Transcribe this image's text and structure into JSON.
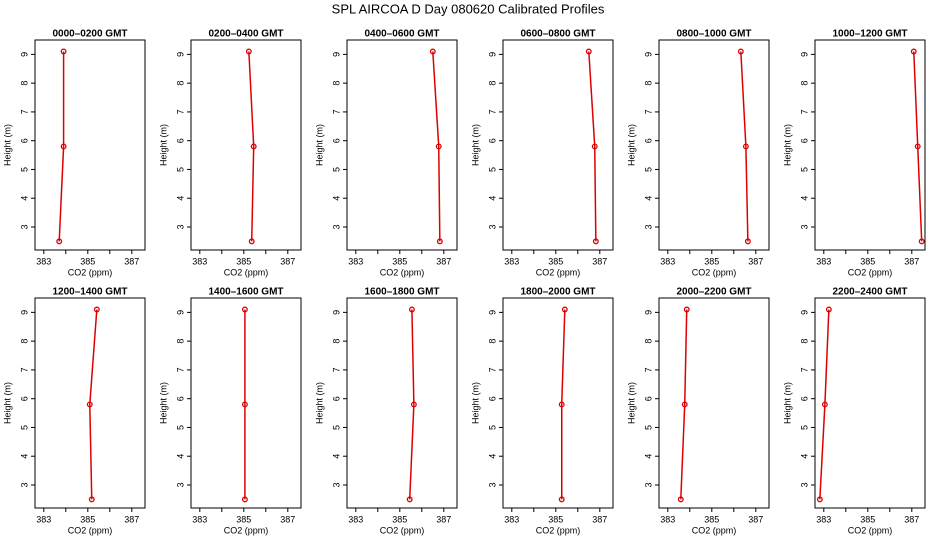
{
  "title": "SPL AIRCOA D  Day 080620  Calibrated Profiles",
  "chart_data": [
    {
      "type": "line",
      "title": "0000–0200 GMT",
      "xlabel": "CO2 (ppm)",
      "ylabel": "Height (m)",
      "x": [
        383.7,
        383.9,
        383.9
      ],
      "values": [
        2.5,
        5.8,
        9.1
      ],
      "color": "#dd0000",
      "xlim": [
        382.6,
        387.6
      ],
      "ylim": [
        2.2,
        9.5
      ],
      "xticks": [
        383,
        385,
        387
      ],
      "xticks_minor": [
        384,
        386
      ],
      "yticks": [
        3,
        4,
        5,
        6,
        7,
        8,
        9
      ]
    },
    {
      "type": "line",
      "title": "0200–0400 GMT",
      "xlabel": "CO2 (ppm)",
      "ylabel": "Height (m)",
      "x": [
        385.36,
        385.45,
        385.23
      ],
      "values": [
        2.5,
        5.8,
        9.1
      ],
      "color": "#dd0000",
      "xlim": [
        382.6,
        387.6
      ],
      "ylim": [
        2.2,
        9.5
      ],
      "xticks": [
        383,
        385,
        387
      ],
      "xticks_minor": [
        384,
        386
      ],
      "yticks": [
        3,
        4,
        5,
        6,
        7,
        8,
        9
      ]
    },
    {
      "type": "line",
      "title": "0400–0600 GMT",
      "xlabel": "CO2 (ppm)",
      "ylabel": "Height (m)",
      "x": [
        386.82,
        386.77,
        386.5
      ],
      "values": [
        2.5,
        5.8,
        9.1
      ],
      "color": "#dd0000",
      "xlim": [
        382.6,
        387.6
      ],
      "ylim": [
        2.2,
        9.5
      ],
      "xticks": [
        383,
        385,
        387
      ],
      "xticks_minor": [
        384,
        386
      ],
      "yticks": [
        3,
        4,
        5,
        6,
        7,
        8,
        9
      ]
    },
    {
      "type": "line",
      "title": "0600–0800 GMT",
      "xlabel": "CO2 (ppm)",
      "ylabel": "Height (m)",
      "x": [
        386.82,
        386.77,
        386.5
      ],
      "values": [
        2.5,
        5.8,
        9.1
      ],
      "color": "#dd0000",
      "xlim": [
        382.6,
        387.6
      ],
      "ylim": [
        2.2,
        9.5
      ],
      "xticks": [
        383,
        385,
        387
      ],
      "xticks_minor": [
        384,
        386
      ],
      "yticks": [
        3,
        4,
        5,
        6,
        7,
        8,
        9
      ]
    },
    {
      "type": "line",
      "title": "0800–1000 GMT",
      "xlabel": "CO2 (ppm)",
      "ylabel": "Height (m)",
      "x": [
        386.64,
        386.55,
        386.32
      ],
      "values": [
        2.5,
        5.8,
        9.1
      ],
      "color": "#dd0000",
      "xlim": [
        382.6,
        387.6
      ],
      "ylim": [
        2.2,
        9.5
      ],
      "xticks": [
        383,
        385,
        387
      ],
      "xticks_minor": [
        384,
        386
      ],
      "yticks": [
        3,
        4,
        5,
        6,
        7,
        8,
        9
      ]
    },
    {
      "type": "line",
      "title": "1000–1200 GMT",
      "xlabel": "CO2 (ppm)",
      "ylabel": "Height (m)",
      "x": [
        387.45,
        387.27,
        387.09
      ],
      "values": [
        2.5,
        5.8,
        9.1
      ],
      "color": "#dd0000",
      "xlim": [
        382.6,
        387.6
      ],
      "ylim": [
        2.2,
        9.5
      ],
      "xticks": [
        383,
        385,
        387
      ],
      "xticks_minor": [
        384,
        386
      ],
      "yticks": [
        3,
        4,
        5,
        6,
        7,
        8,
        9
      ]
    },
    {
      "type": "line",
      "title": "1200–1400 GMT",
      "xlabel": "CO2 (ppm)",
      "ylabel": "Height (m)",
      "x": [
        385.18,
        385.09,
        385.41
      ],
      "values": [
        2.5,
        5.8,
        9.1
      ],
      "color": "#dd0000",
      "xlim": [
        382.6,
        387.6
      ],
      "ylim": [
        2.2,
        9.5
      ],
      "xticks": [
        383,
        385,
        387
      ],
      "xticks_minor": [
        384,
        386
      ],
      "yticks": [
        3,
        4,
        5,
        6,
        7,
        8,
        9
      ]
    },
    {
      "type": "line",
      "title": "1400–1600 GMT",
      "xlabel": "CO2 (ppm)",
      "ylabel": "Height (m)",
      "x": [
        385.05,
        385.05,
        385.05
      ],
      "values": [
        2.5,
        5.8,
        9.1
      ],
      "color": "#dd0000",
      "xlim": [
        382.6,
        387.6
      ],
      "ylim": [
        2.2,
        9.5
      ],
      "xticks": [
        383,
        385,
        387
      ],
      "xticks_minor": [
        384,
        386
      ],
      "yticks": [
        3,
        4,
        5,
        6,
        7,
        8,
        9
      ]
    },
    {
      "type": "line",
      "title": "1600–1800 GMT",
      "xlabel": "CO2 (ppm)",
      "ylabel": "Height (m)",
      "x": [
        385.45,
        385.64,
        385.55
      ],
      "values": [
        2.5,
        5.8,
        9.1
      ],
      "color": "#dd0000",
      "xlim": [
        382.6,
        387.6
      ],
      "ylim": [
        2.2,
        9.5
      ],
      "xticks": [
        383,
        385,
        387
      ],
      "xticks_minor": [
        384,
        386
      ],
      "yticks": [
        3,
        4,
        5,
        6,
        7,
        8,
        9
      ]
    },
    {
      "type": "line",
      "title": "1800–2000 GMT",
      "xlabel": "CO2 (ppm)",
      "ylabel": "Height (m)",
      "x": [
        385.27,
        385.27,
        385.41
      ],
      "values": [
        2.5,
        5.8,
        9.1
      ],
      "color": "#dd0000",
      "xlim": [
        382.6,
        387.6
      ],
      "ylim": [
        2.2,
        9.5
      ],
      "xticks": [
        383,
        385,
        387
      ],
      "xticks_minor": [
        384,
        386
      ],
      "yticks": [
        3,
        4,
        5,
        6,
        7,
        8,
        9
      ]
    },
    {
      "type": "line",
      "title": "2000–2200 GMT",
      "xlabel": "CO2 (ppm)",
      "ylabel": "Height (m)",
      "x": [
        383.59,
        383.77,
        383.86
      ],
      "values": [
        2.5,
        5.8,
        9.1
      ],
      "color": "#dd0000",
      "xlim": [
        382.6,
        387.6
      ],
      "ylim": [
        2.2,
        9.5
      ],
      "xticks": [
        383,
        385,
        387
      ],
      "xticks_minor": [
        384,
        386
      ],
      "yticks": [
        3,
        4,
        5,
        6,
        7,
        8,
        9
      ]
    },
    {
      "type": "line",
      "title": "2200–2400 GMT",
      "xlabel": "CO2 (ppm)",
      "ylabel": "Height (m)",
      "x": [
        382.82,
        383.05,
        383.23
      ],
      "values": [
        2.5,
        5.8,
        9.1
      ],
      "color": "#dd0000",
      "xlim": [
        382.6,
        387.6
      ],
      "ylim": [
        2.2,
        9.5
      ],
      "xticks": [
        383,
        385,
        387
      ],
      "xticks_minor": [
        384,
        386
      ],
      "yticks": [
        3,
        4,
        5,
        6,
        7,
        8,
        9
      ]
    }
  ]
}
